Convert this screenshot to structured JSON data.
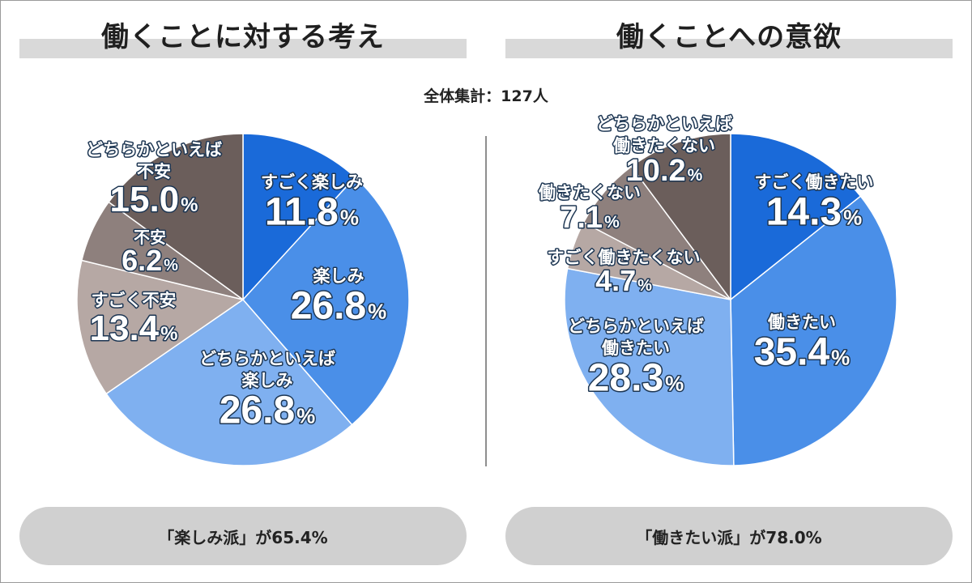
{
  "subtitle": "全体集計：127人",
  "colors": {
    "dark_blue": "#1a6ad9",
    "mid_blue": "#4a8fe8",
    "light_blue": "#7fb0f0",
    "light_taupe": "#b6a8a4",
    "mid_taupe": "#8e807d",
    "dark_taupe": "#6b5e5b"
  },
  "chart_data": [
    {
      "type": "pie",
      "title": "働くことに対する考え",
      "summary": "「楽しみ派」が65.4%",
      "slices": [
        {
          "label_lines": [
            "すごく楽しみ"
          ],
          "value": 11.8,
          "value_text": "11.8",
          "color": "#1a6ad9"
        },
        {
          "label_lines": [
            "楽しみ"
          ],
          "value": 26.8,
          "value_text": "26.8",
          "color": "#4a8fe8"
        },
        {
          "label_lines": [
            "どちらかといえば",
            "楽しみ"
          ],
          "value": 26.8,
          "value_text": "26.8",
          "color": "#7fb0f0"
        },
        {
          "label_lines": [
            "すごく不安"
          ],
          "value": 13.4,
          "value_text": "13.4",
          "color": "#b6a8a4"
        },
        {
          "label_lines": [
            "不安"
          ],
          "value": 6.2,
          "value_text": "6.2",
          "color": "#8e807d"
        },
        {
          "label_lines": [
            "どちらかといえば",
            "不安"
          ],
          "value": 15.0,
          "value_text": "15.0",
          "color": "#6b5e5b"
        }
      ]
    },
    {
      "type": "pie",
      "title": "働くことへの意欲",
      "summary": "「働きたい派」が78.0%",
      "slices": [
        {
          "label_lines": [
            "すごく働きたい"
          ],
          "value": 14.3,
          "value_text": "14.3",
          "color": "#1a6ad9"
        },
        {
          "label_lines": [
            "働きたい"
          ],
          "value": 35.4,
          "value_text": "35.4",
          "color": "#4a8fe8"
        },
        {
          "label_lines": [
            "どちらかといえば",
            "働きたい"
          ],
          "value": 28.3,
          "value_text": "28.3",
          "color": "#7fb0f0"
        },
        {
          "label_lines": [
            "すごく働きたくない"
          ],
          "value": 4.7,
          "value_text": "4.7",
          "color": "#b6a8a4"
        },
        {
          "label_lines": [
            "働きたくない"
          ],
          "value": 7.1,
          "value_text": "7.1",
          "color": "#8e807d"
        },
        {
          "label_lines": [
            "どちらかといえば",
            "働きたくない"
          ],
          "value": 10.2,
          "value_text": "10.2",
          "color": "#6b5e5b"
        }
      ]
    }
  ]
}
